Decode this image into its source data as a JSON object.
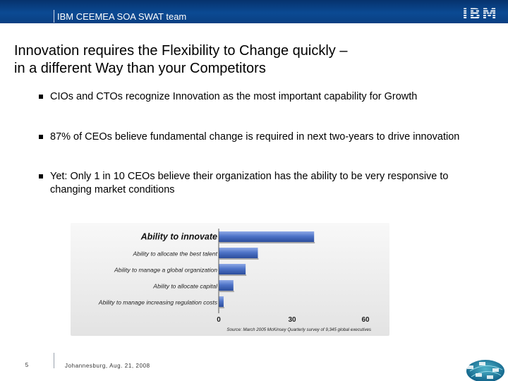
{
  "header": {
    "team": "IBM CEEMEA SOA SWAT team",
    "logo": "IBM"
  },
  "title": {
    "line1": "Innovation requires the Flexibility to Change quickly –",
    "line2": "in a different Way than your Competitors"
  },
  "bullets": [
    {
      "text": "CIOs and CTOs recognize Innovation as the most important capability for Growth"
    },
    {
      "text": "87% of CEOs believe fundamental change is required in next two-years to drive innovation"
    },
    {
      "text": "Yet: Only 1 in 10 CEOs believe their organization has the ability to be very responsive to changing market conditions"
    }
  ],
  "chart_data": {
    "type": "bar",
    "orientation": "horizontal",
    "categories": [
      "Ability to innovate",
      "Ability to allocate the best talent",
      "Ability to manage a global organization",
      "Ability to allocate capital",
      "Ability to manage increasing regulation costs"
    ],
    "values": [
      39,
      16,
      11,
      6,
      2
    ],
    "xlim": [
      0,
      60
    ],
    "xticks": [
      0,
      30,
      60
    ],
    "source": "Source: March 2005 McKinsey Quarterly survey of 9,345 global executives",
    "colors": {
      "bar": "#4f74c8",
      "bar_dark": "#2b4d9c",
      "background": "#ececec"
    }
  },
  "footer": {
    "page_number": "5",
    "location_date": "Johannesburg, Aug. 21, 2008",
    "decor_icon": "globe-network-icon"
  }
}
